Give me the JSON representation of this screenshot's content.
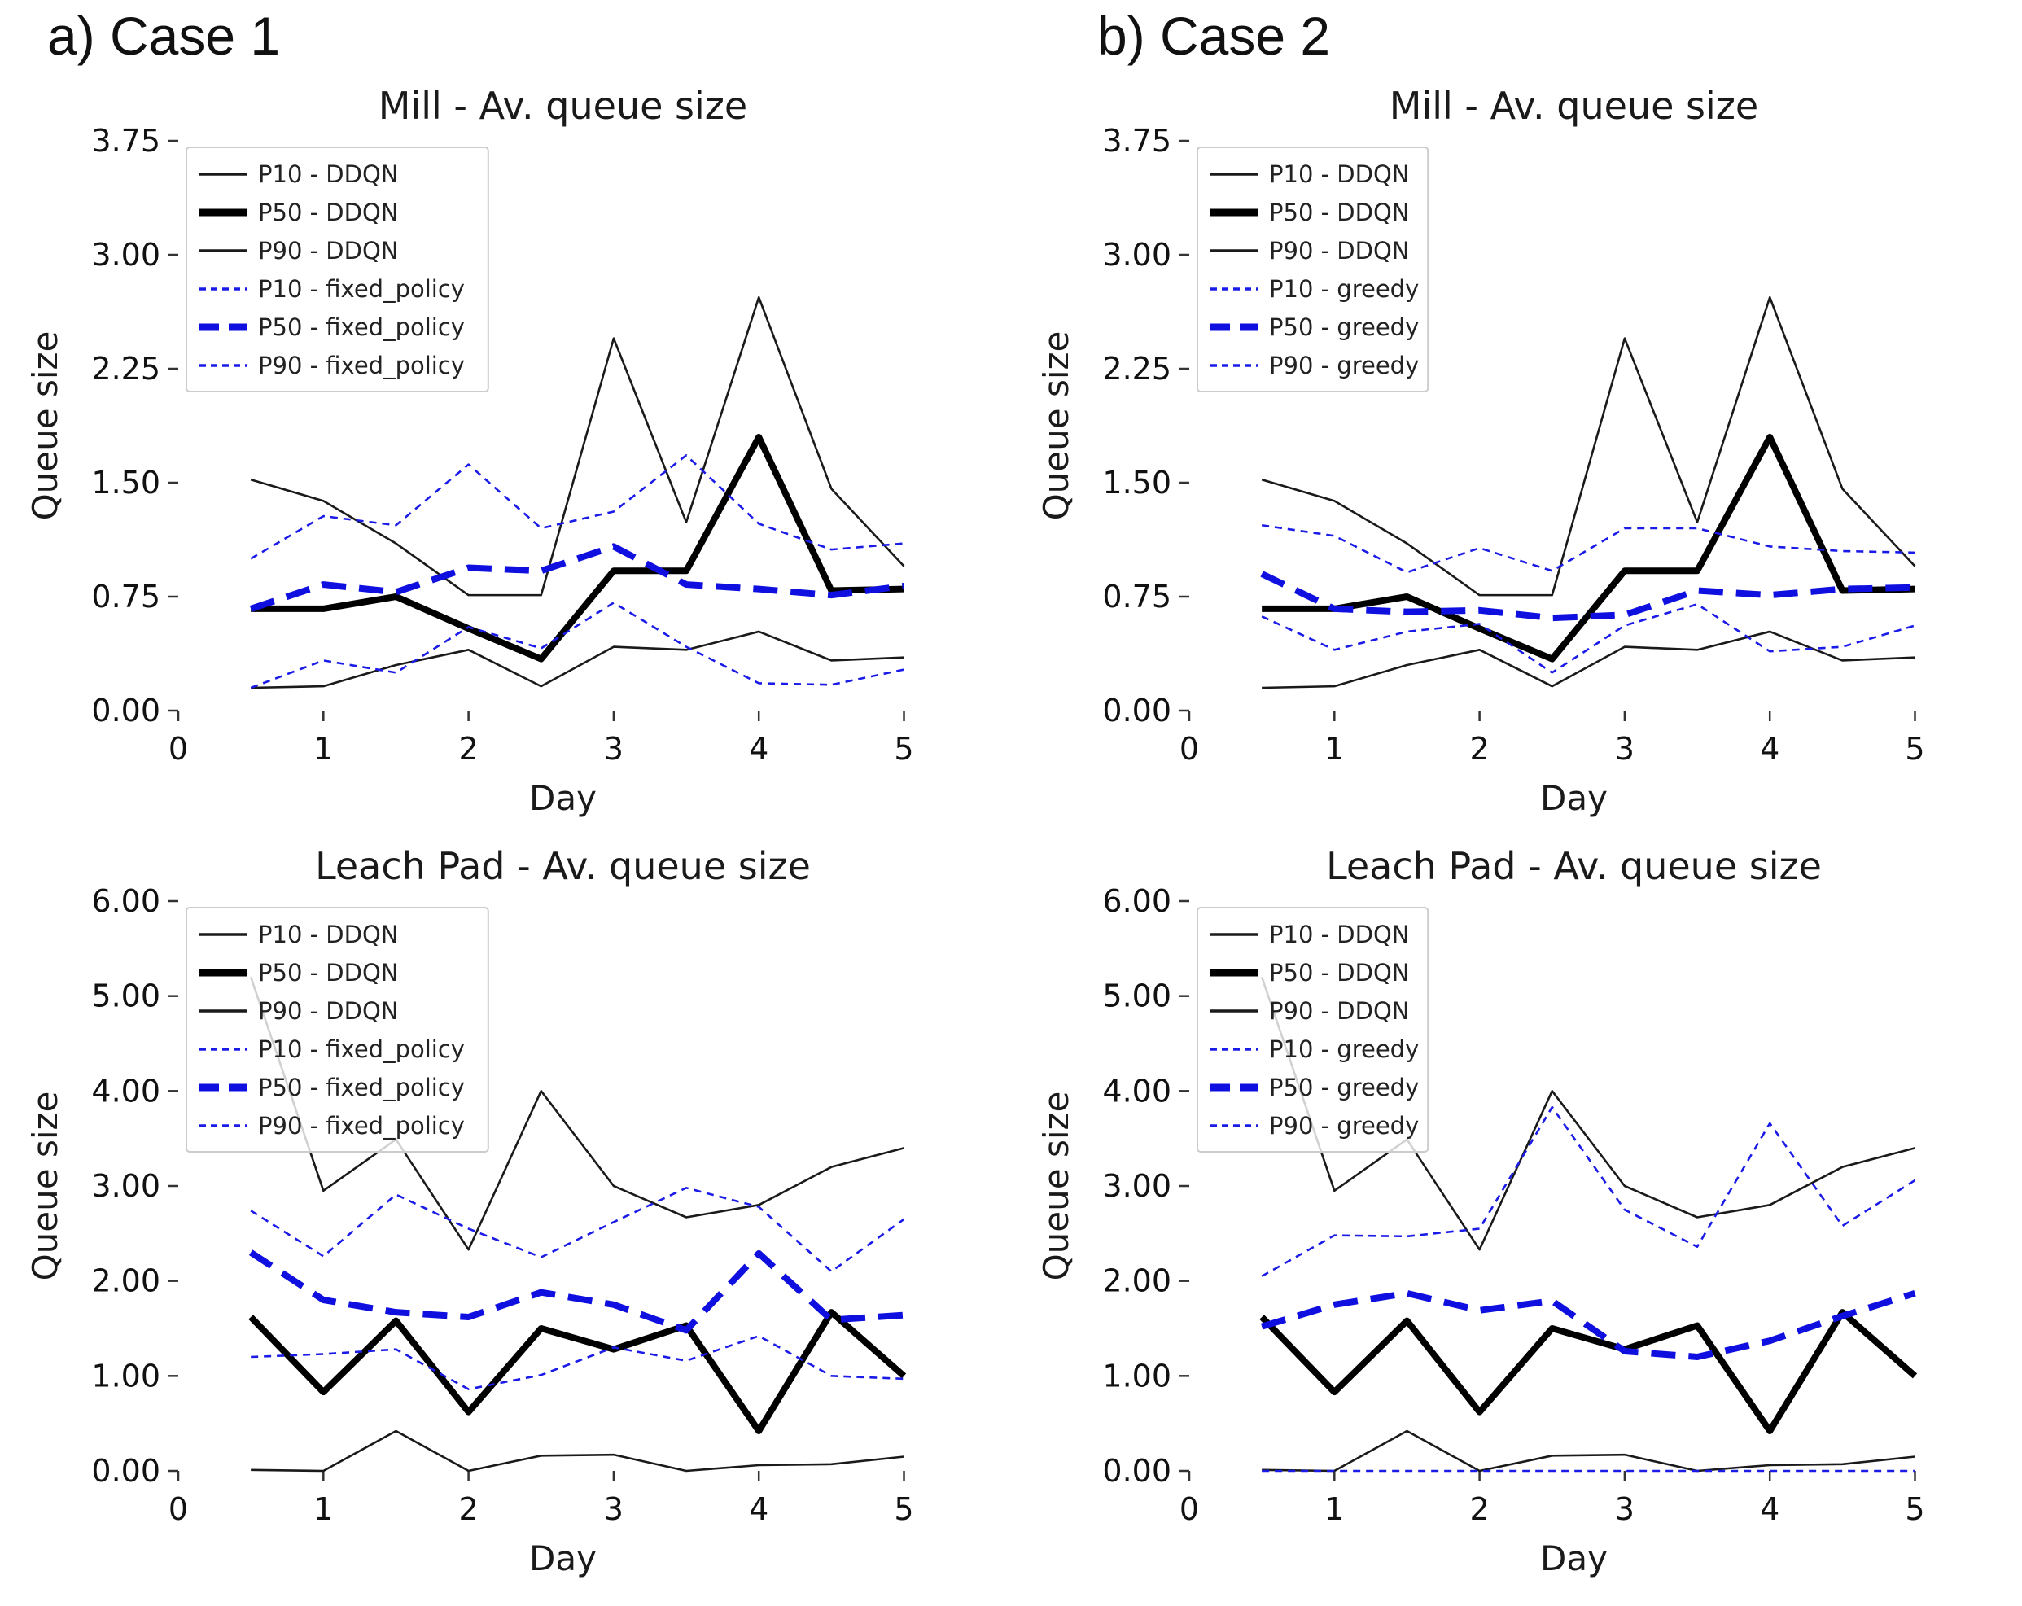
{
  "headers": {
    "case1": "a) Case 1",
    "case2": "b) Case 2"
  },
  "colors": {
    "black_line": "#1a1a1a",
    "black_thick": "#000000",
    "blue_line": "#1b1be8",
    "blue_thick": "#0f0fe0",
    "frame": "#444444",
    "tick_text": "#111111"
  },
  "chart_data": [
    {
      "id": "case1-mill",
      "type": "line",
      "title": "Mill - Av. queue size",
      "xlabel": "Day",
      "ylabel": "Queue size",
      "x": [
        0.5,
        1,
        1.5,
        2,
        2.5,
        3,
        3.5,
        4,
        4.5,
        5
      ],
      "xlim": [
        0,
        5.3
      ],
      "ylim": [
        0,
        3.75
      ],
      "xticks": [
        0,
        1,
        2,
        3,
        4,
        5
      ],
      "xtick_labels": [
        "0",
        "1",
        "2",
        "3",
        "4",
        "5"
      ],
      "yticks": [
        0,
        0.75,
        1.5,
        2.25,
        3,
        3.75
      ],
      "ytick_labels": [
        "0.00",
        "0.75",
        "1.50",
        "2.25",
        "3.00",
        "3.75"
      ],
      "grid": false,
      "legend_position": "upper left",
      "series": [
        {
          "name": "P10 - DDQN",
          "color": "#1a1a1a",
          "width": "thin",
          "style": "solid",
          "values": [
            0.15,
            0.16,
            0.3,
            0.4,
            0.16,
            0.42,
            0.4,
            0.52,
            0.33,
            0.35
          ]
        },
        {
          "name": "P50 - DDQN",
          "color": "#000000",
          "width": "thick",
          "style": "solid",
          "values": [
            0.67,
            0.67,
            0.75,
            0.54,
            0.34,
            0.92,
            0.92,
            1.8,
            0.79,
            0.8
          ]
        },
        {
          "name": "P90 - DDQN",
          "color": "#1a1a1a",
          "width": "thin",
          "style": "solid",
          "values": [
            1.52,
            1.38,
            1.1,
            0.76,
            0.76,
            2.45,
            1.24,
            2.72,
            1.46,
            0.95
          ]
        },
        {
          "name": "P10 - fixed_policy",
          "color": "#1b1be8",
          "width": "thin",
          "style": "dashed",
          "values": [
            0.15,
            0.33,
            0.25,
            0.55,
            0.41,
            0.71,
            0.42,
            0.18,
            0.17,
            0.27
          ]
        },
        {
          "name": "P50 - fixed_policy",
          "color": "#0f0fe0",
          "width": "thick",
          "style": "dashed",
          "values": [
            0.67,
            0.83,
            0.78,
            0.94,
            0.92,
            1.08,
            0.83,
            0.8,
            0.76,
            0.82
          ]
        },
        {
          "name": "P90 - fixed_policy",
          "color": "#1b1be8",
          "width": "thin",
          "style": "dashed",
          "values": [
            1.0,
            1.28,
            1.22,
            1.62,
            1.2,
            1.31,
            1.68,
            1.23,
            1.06,
            1.1
          ]
        }
      ]
    },
    {
      "id": "case2-mill",
      "type": "line",
      "title": "Mill - Av. queue size",
      "xlabel": "Day",
      "ylabel": "Queue size",
      "x": [
        0.5,
        1,
        1.5,
        2,
        2.5,
        3,
        3.5,
        4,
        4.5,
        5
      ],
      "xlim": [
        0,
        5.3
      ],
      "ylim": [
        0,
        3.75
      ],
      "xticks": [
        0,
        1,
        2,
        3,
        4,
        5
      ],
      "xtick_labels": [
        "0",
        "1",
        "2",
        "3",
        "4",
        "5"
      ],
      "yticks": [
        0,
        0.75,
        1.5,
        2.25,
        3,
        3.75
      ],
      "ytick_labels": [
        "0.00",
        "0.75",
        "1.50",
        "2.25",
        "3.00",
        "3.75"
      ],
      "grid": false,
      "legend_position": "upper left",
      "series": [
        {
          "name": "P10 - DDQN",
          "color": "#1a1a1a",
          "width": "thin",
          "style": "solid",
          "values": [
            0.15,
            0.16,
            0.3,
            0.4,
            0.16,
            0.42,
            0.4,
            0.52,
            0.33,
            0.35
          ]
        },
        {
          "name": "P50 - DDQN",
          "color": "#000000",
          "width": "thick",
          "style": "solid",
          "values": [
            0.67,
            0.67,
            0.75,
            0.54,
            0.34,
            0.92,
            0.92,
            1.8,
            0.79,
            0.8
          ]
        },
        {
          "name": "P90 - DDQN",
          "color": "#1a1a1a",
          "width": "thin",
          "style": "solid",
          "values": [
            1.52,
            1.38,
            1.1,
            0.76,
            0.76,
            2.45,
            1.24,
            2.72,
            1.46,
            0.95
          ]
        },
        {
          "name": "P10 - greedy",
          "color": "#1b1be8",
          "width": "thin",
          "style": "dashed",
          "values": [
            0.62,
            0.4,
            0.52,
            0.57,
            0.25,
            0.56,
            0.7,
            0.39,
            0.42,
            0.56
          ]
        },
        {
          "name": "P50 - greedy",
          "color": "#0f0fe0",
          "width": "thick",
          "style": "dashed",
          "values": [
            0.9,
            0.67,
            0.65,
            0.66,
            0.61,
            0.63,
            0.79,
            0.76,
            0.8,
            0.81
          ]
        },
        {
          "name": "P90 - greedy",
          "color": "#1b1be8",
          "width": "thin",
          "style": "dashed",
          "values": [
            1.22,
            1.15,
            0.91,
            1.07,
            0.92,
            1.2,
            1.2,
            1.08,
            1.05,
            1.04
          ]
        }
      ]
    },
    {
      "id": "case1-leachpad",
      "type": "line",
      "title": "Leach Pad - Av. queue size",
      "xlabel": "Day",
      "ylabel": "Queue size",
      "x": [
        0.5,
        1,
        1.5,
        2,
        2.5,
        3,
        3.5,
        4,
        4.5,
        5
      ],
      "xlim": [
        0,
        5.3
      ],
      "ylim": [
        0,
        6
      ],
      "xticks": [
        0,
        1,
        2,
        3,
        4,
        5
      ],
      "xtick_labels": [
        "0",
        "1",
        "2",
        "3",
        "4",
        "5"
      ],
      "yticks": [
        0,
        1,
        2,
        3,
        4,
        5,
        6
      ],
      "ytick_labels": [
        "0.00",
        "1.00",
        "2.00",
        "3.00",
        "4.00",
        "5.00",
        "6.00"
      ],
      "grid": false,
      "legend_position": "upper left",
      "series": [
        {
          "name": "P10 - DDQN",
          "color": "#1a1a1a",
          "width": "thin",
          "style": "solid",
          "values": [
            0.01,
            0.0,
            0.42,
            0.0,
            0.16,
            0.17,
            0.0,
            0.06,
            0.07,
            0.15
          ]
        },
        {
          "name": "P50 - DDQN",
          "color": "#000000",
          "width": "thick",
          "style": "solid",
          "values": [
            1.62,
            0.83,
            1.58,
            0.62,
            1.5,
            1.28,
            1.53,
            0.42,
            1.67,
            1.0
          ]
        },
        {
          "name": "P90 - DDQN",
          "color": "#1a1a1a",
          "width": "thin",
          "style": "solid",
          "values": [
            5.2,
            2.95,
            3.49,
            2.33,
            4.0,
            3.0,
            2.67,
            2.8,
            3.2,
            3.4
          ]
        },
        {
          "name": "P10 - fixed_policy",
          "color": "#1b1be8",
          "width": "thin",
          "style": "dashed",
          "values": [
            1.2,
            1.23,
            1.28,
            0.86,
            1.01,
            1.3,
            1.16,
            1.42,
            1.0,
            0.97
          ]
        },
        {
          "name": "P50 - fixed_policy",
          "color": "#0f0fe0",
          "width": "thick",
          "style": "dashed",
          "values": [
            2.3,
            1.8,
            1.67,
            1.62,
            1.88,
            1.75,
            1.48,
            2.29,
            1.59,
            1.64
          ]
        },
        {
          "name": "P90 - fixed_policy",
          "color": "#1b1be8",
          "width": "thin",
          "style": "dashed",
          "values": [
            2.74,
            2.26,
            2.91,
            2.55,
            2.25,
            2.62,
            2.98,
            2.78,
            2.1,
            2.65
          ]
        }
      ]
    },
    {
      "id": "case2-leachpad",
      "type": "line",
      "title": "Leach Pad - Av. queue size",
      "xlabel": "Day",
      "ylabel": "Queue size",
      "x": [
        0.5,
        1,
        1.5,
        2,
        2.5,
        3,
        3.5,
        4,
        4.5,
        5
      ],
      "xlim": [
        0,
        5.3
      ],
      "ylim": [
        0,
        6
      ],
      "xticks": [
        0,
        1,
        2,
        3,
        4,
        5
      ],
      "xtick_labels": [
        "0",
        "1",
        "2",
        "3",
        "4",
        "5"
      ],
      "yticks": [
        0,
        1,
        2,
        3,
        4,
        5,
        6
      ],
      "ytick_labels": [
        "0.00",
        "1.00",
        "2.00",
        "3.00",
        "4.00",
        "5.00",
        "6.00"
      ],
      "grid": false,
      "legend_position": "upper left",
      "series": [
        {
          "name": "P10 - DDQN",
          "color": "#1a1a1a",
          "width": "thin",
          "style": "solid",
          "values": [
            0.01,
            0.0,
            0.42,
            0.0,
            0.16,
            0.17,
            0.0,
            0.06,
            0.07,
            0.15
          ]
        },
        {
          "name": "P50 - DDQN",
          "color": "#000000",
          "width": "thick",
          "style": "solid",
          "values": [
            1.62,
            0.83,
            1.58,
            0.62,
            1.5,
            1.28,
            1.53,
            0.42,
            1.67,
            1.0
          ]
        },
        {
          "name": "P90 - DDQN",
          "color": "#1a1a1a",
          "width": "thin",
          "style": "solid",
          "values": [
            5.2,
            2.95,
            3.49,
            2.33,
            4.0,
            3.0,
            2.67,
            2.8,
            3.2,
            3.4
          ]
        },
        {
          "name": "P10 - greedy",
          "color": "#1b1be8",
          "width": "thin",
          "style": "dashed",
          "values": [
            0.0,
            0.0,
            0.0,
            0.0,
            0.0,
            0.0,
            0.0,
            0.0,
            0.0,
            0.0
          ]
        },
        {
          "name": "P50 - greedy",
          "color": "#0f0fe0",
          "width": "thick",
          "style": "dashed",
          "values": [
            1.52,
            1.75,
            1.87,
            1.69,
            1.79,
            1.26,
            1.2,
            1.37,
            1.63,
            1.87
          ]
        },
        {
          "name": "P90 - greedy",
          "color": "#1b1be8",
          "width": "thin",
          "style": "dashed",
          "values": [
            2.05,
            2.48,
            2.47,
            2.55,
            3.83,
            2.75,
            2.36,
            3.66,
            2.58,
            3.06
          ]
        }
      ]
    }
  ]
}
